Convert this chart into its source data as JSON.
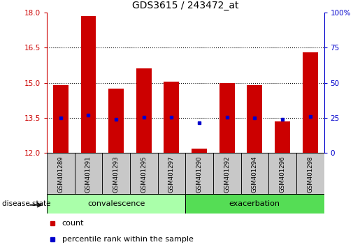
{
  "title": "GDS3615 / 243472_at",
  "samples": [
    "GSM401289",
    "GSM401291",
    "GSM401293",
    "GSM401295",
    "GSM401297",
    "GSM401290",
    "GSM401292",
    "GSM401294",
    "GSM401296",
    "GSM401298"
  ],
  "count_values": [
    14.9,
    17.85,
    14.75,
    15.6,
    15.05,
    12.2,
    15.0,
    14.9,
    13.35,
    16.3
  ],
  "percentile_values": [
    13.5,
    13.62,
    13.45,
    13.52,
    13.52,
    13.3,
    13.52,
    13.5,
    13.45,
    13.55
  ],
  "bar_bottom": 12.0,
  "ylim_left": [
    12,
    18
  ],
  "ylim_right": [
    0,
    100
  ],
  "yticks_left": [
    12,
    13.5,
    15,
    16.5,
    18
  ],
  "yticks_right": [
    0,
    25,
    50,
    75,
    100
  ],
  "groups": [
    {
      "label": "convalescence",
      "start": 0,
      "end": 5
    },
    {
      "label": "exacerbation",
      "start": 5,
      "end": 10
    }
  ],
  "bar_color": "#CC0000",
  "dot_color": "#0000CC",
  "bar_width": 0.55,
  "left_tick_color": "#CC0000",
  "right_tick_color": "#0000CC",
  "background_label": "#C8C8C8",
  "group_colors": [
    "#aaffaa",
    "#55dd55"
  ],
  "disease_state_label": "disease state",
  "legend_count": "count",
  "legend_percentile": "percentile rank within the sample",
  "grid_yticks": [
    13.5,
    15.0,
    16.5
  ]
}
